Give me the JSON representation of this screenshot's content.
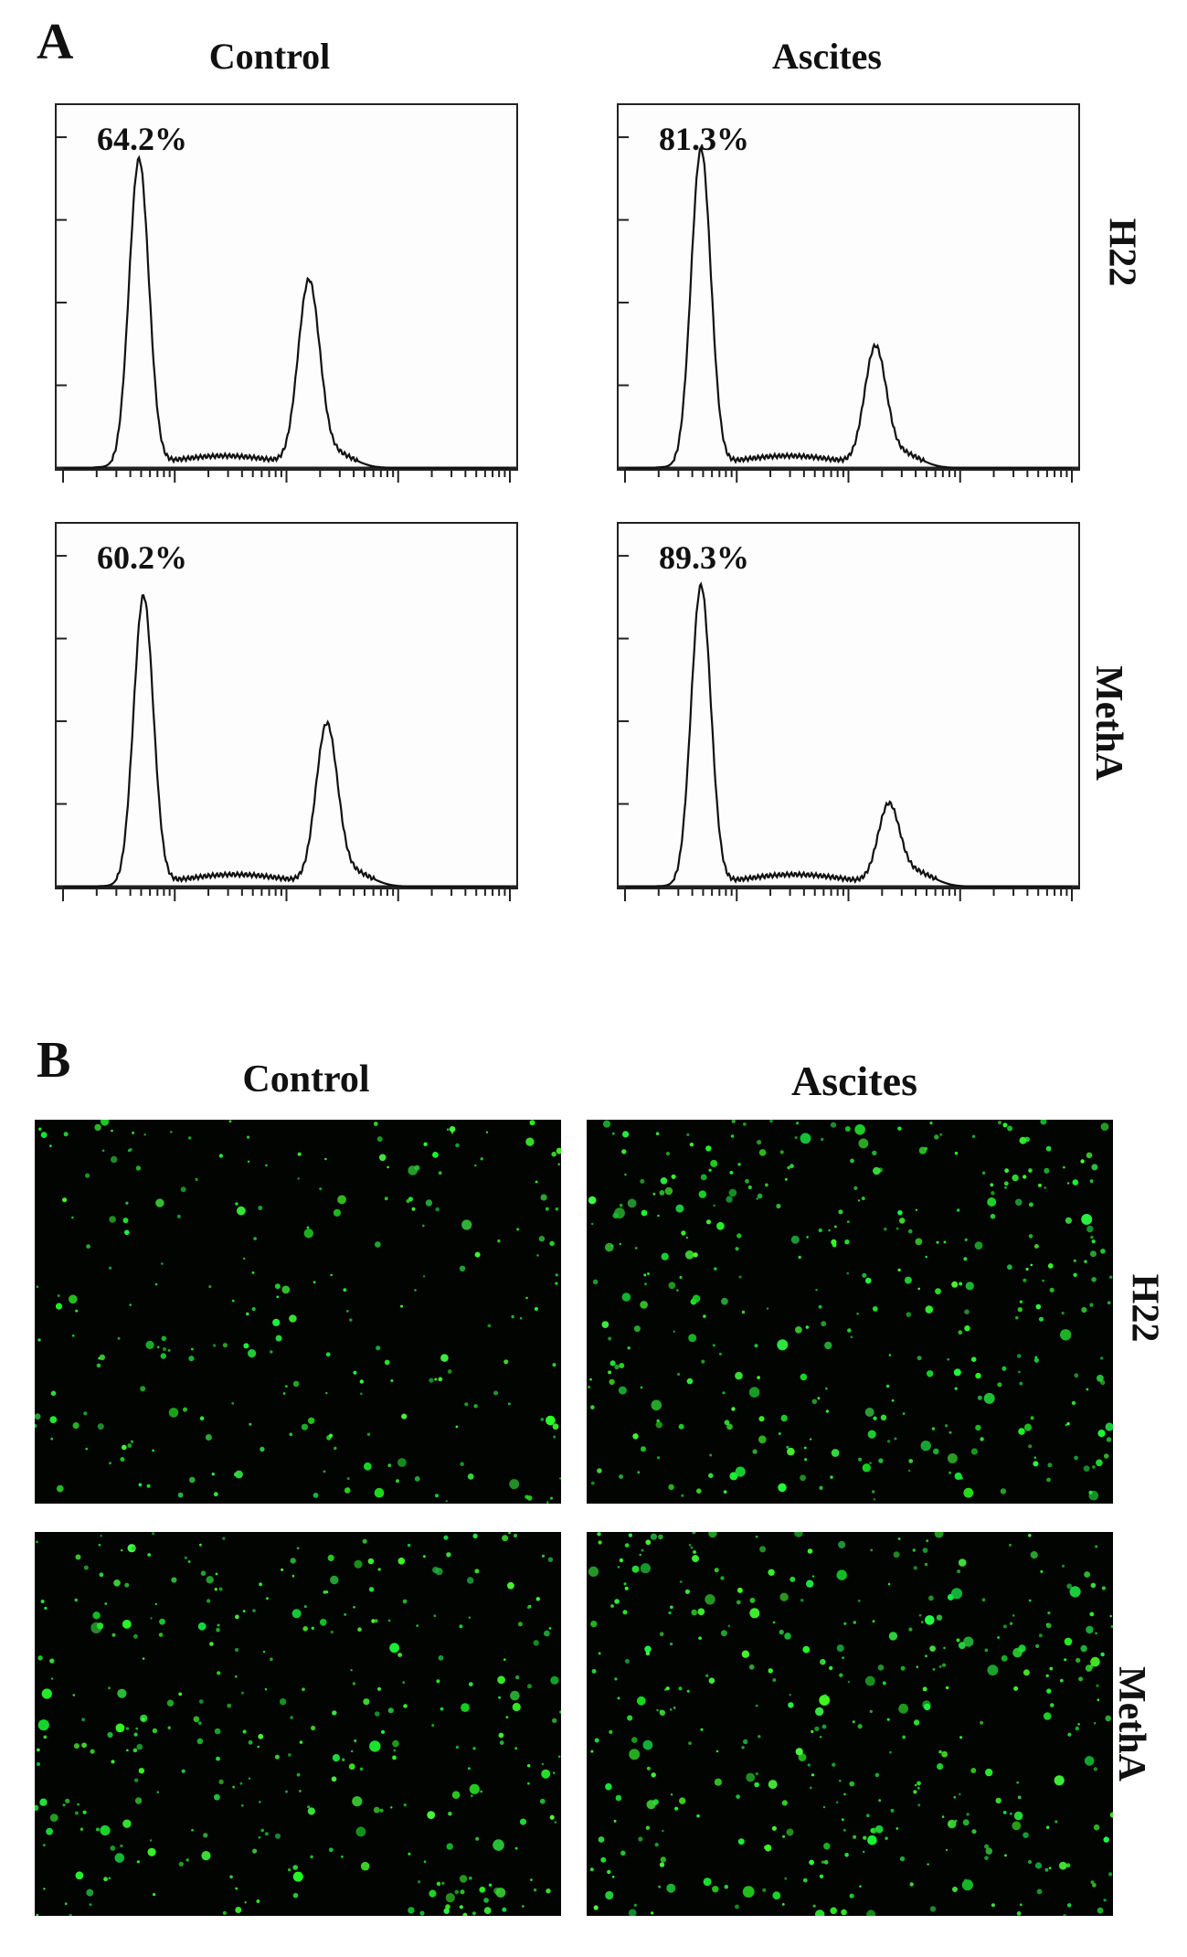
{
  "panel_a": {
    "letter": "A",
    "columns": [
      "Control",
      "Ascites"
    ],
    "rows": [
      "H22",
      "MethA"
    ],
    "histograms": [
      {
        "row": "H22",
        "column": "Control",
        "percent_label": "64.2%",
        "peak1": {
          "pos": 0.17,
          "height": 0.88
        },
        "peak2": {
          "pos": 0.55,
          "height": 0.52
        }
      },
      {
        "row": "H22",
        "column": "Ascites",
        "percent_label": "81.3%",
        "peak1": {
          "pos": 0.17,
          "height": 0.91
        },
        "peak2": {
          "pos": 0.56,
          "height": 0.33
        }
      },
      {
        "row": "MethA",
        "column": "Control",
        "percent_label": "60.2%",
        "peak1": {
          "pos": 0.18,
          "height": 0.83
        },
        "peak2": {
          "pos": 0.59,
          "height": 0.45
        }
      },
      {
        "row": "MethA",
        "column": "Ascites",
        "percent_label": "89.3%",
        "peak1": {
          "pos": 0.17,
          "height": 0.86
        },
        "peak2": {
          "pos": 0.59,
          "height": 0.22
        }
      }
    ]
  },
  "panel_b": {
    "letter": "B",
    "columns": [
      "Control",
      "Ascites"
    ],
    "rows": [
      "H22",
      "MethA"
    ],
    "images": [
      {
        "row": "H22",
        "column": "Control",
        "description": "green fluorescent cells on black background"
      },
      {
        "row": "H22",
        "column": "Ascites",
        "description": "green fluorescent cells on black background"
      },
      {
        "row": "MethA",
        "column": "Control",
        "description": "green fluorescent cells on black background"
      },
      {
        "row": "MethA",
        "column": "Ascites",
        "description": "green fluorescent cells on black background"
      }
    ],
    "fluorescence_color": "#39e04a",
    "background_color": "#020402"
  }
}
